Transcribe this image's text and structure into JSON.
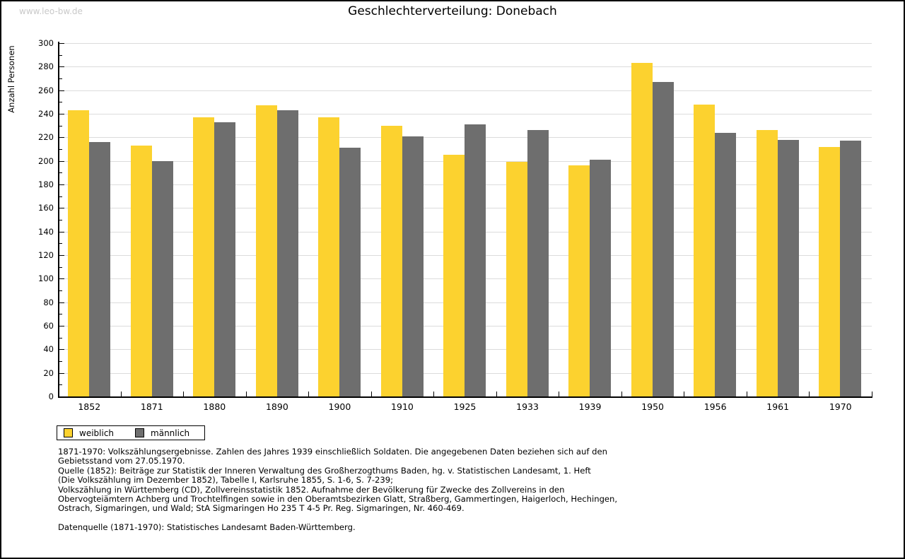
{
  "page": {
    "watermark": "www.leo-bw.de",
    "title": "Geschlechterverteilung: Donebach"
  },
  "chart_data": {
    "type": "bar",
    "title": "Geschlechterverteilung: Donebach",
    "xlabel": "",
    "ylabel": "Anzahl Personen",
    "categories": [
      "1852",
      "1871",
      "1880",
      "1890",
      "1900",
      "1910",
      "1925",
      "1933",
      "1939",
      "1950",
      "1956",
      "1961",
      "1970"
    ],
    "series": [
      {
        "name": "weiblich",
        "color": "#fcd22f",
        "values": [
          243,
          213,
          237,
          247,
          237,
          230,
          205,
          199,
          196,
          283,
          248,
          226,
          212
        ]
      },
      {
        "name": "männlich",
        "color": "#6e6e6e",
        "values": [
          216,
          200,
          233,
          243,
          211,
          221,
          231,
          226,
          201,
          267,
          224,
          218,
          217
        ]
      }
    ],
    "ylim": [
      0,
      300
    ],
    "ytick_step": 20,
    "ytick_minor_step": 10,
    "grid": true,
    "gridline_color": "#dcdcdc",
    "legend_position": "bottom-left"
  },
  "footer": {
    "lines": [
      "1871-1970: Volkszählungsergebnisse. Zahlen des Jahres 1939 einschließlich Soldaten. Die angegebenen Daten beziehen sich auf den",
      "Gebietsstand vom 27.05.1970.",
      "Quelle (1852): Beiträge zur Statistik der Inneren Verwaltung des Großherzogthums Baden, hg. v. Statistischen Landesamt, 1. Heft",
      "(Die Volkszählung im Dezember 1852), Tabelle I, Karlsruhe 1855, S. 1-6, S. 7-239;",
      "Volkszählung in Württemberg (CD), Zollvereinsstatistik 1852. Aufnahme der Bevölkerung für Zwecke des Zollvereins in den",
      "Obervogteiämtern Achberg und Trochtelfingen sowie in den Oberamtsbezirken Glatt, Straßberg, Gammertingen, Haigerloch, Hechingen,",
      "Ostrach, Sigmaringen, und Wald; StA Sigmaringen Ho 235 T 4-5 Pr. Reg. Sigmaringen, Nr. 460-469.",
      "",
      "Datenquelle (1871-1970): Statistisches Landesamt Baden-Württemberg."
    ]
  },
  "colors": {
    "female_bar": "#fcd22f",
    "male_bar": "#6e6e6e",
    "gridline": "#dcdcdc",
    "axis": "#000000",
    "watermark": "#c9c9c9",
    "background": "#ffffff",
    "border": "#000000"
  }
}
